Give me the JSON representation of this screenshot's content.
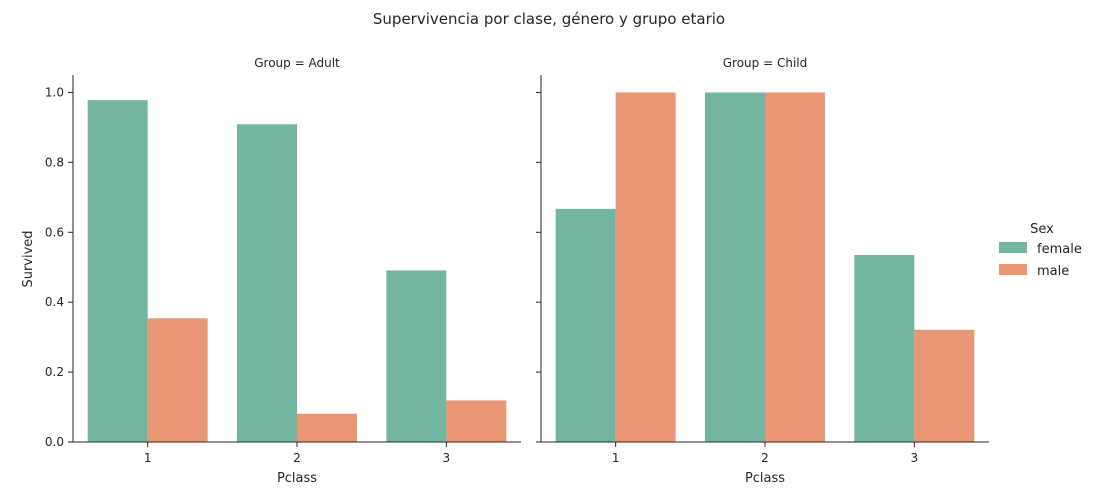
{
  "chart_data": {
    "type": "bar",
    "title": "Supervivencia por clase, género y grupo etario",
    "xlabel": "Pclass",
    "ylabel": "Survived",
    "ylim": [
      0,
      1.05
    ],
    "yticks": [
      "0.0",
      "0.2",
      "0.4",
      "0.6",
      "0.8",
      "1.0"
    ],
    "categories": [
      "1",
      "2",
      "3"
    ],
    "legend": {
      "title": "Sex",
      "placement": "right",
      "entries": [
        "female",
        "male"
      ]
    },
    "colors": {
      "female": "#72b6a1",
      "male": "#e99675"
    },
    "panels": [
      {
        "title": "Group = Adult",
        "series": [
          {
            "name": "female",
            "values": [
              0.978,
              0.909,
              0.491
            ]
          },
          {
            "name": "male",
            "values": [
              0.354,
              0.081,
              0.119
            ]
          }
        ]
      },
      {
        "title": "Group = Child",
        "series": [
          {
            "name": "female",
            "values": [
              0.667,
              1.0,
              0.535
            ]
          },
          {
            "name": "male",
            "values": [
              1.0,
              1.0,
              0.321
            ]
          }
        ]
      }
    ]
  }
}
